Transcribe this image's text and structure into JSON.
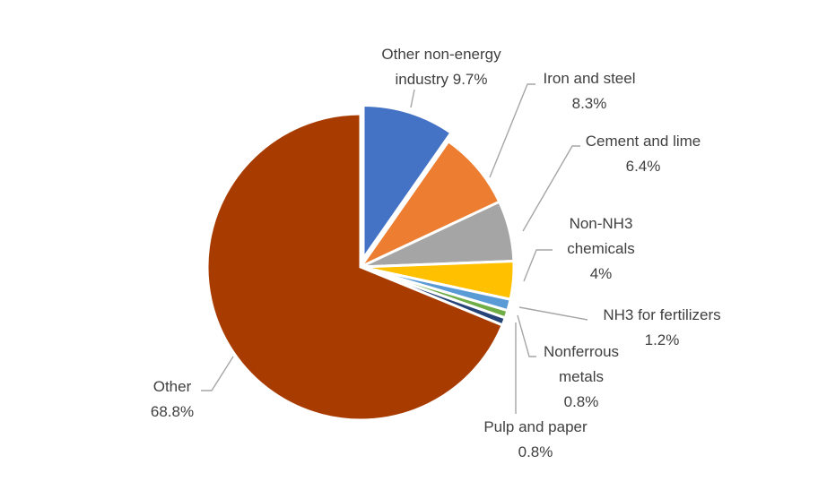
{
  "chart_data": {
    "type": "pie",
    "title": "",
    "slices": [
      {
        "label": [
          "Other non-energy",
          "industry 9.7%"
        ],
        "name": "Other non-energy industry",
        "value": 9.7,
        "color": "#4472C4",
        "exploded": true
      },
      {
        "label": [
          "Iron and steel",
          "8.3%"
        ],
        "name": "Iron and steel",
        "value": 8.3,
        "color": "#ED7D31",
        "exploded": false
      },
      {
        "label": [
          "Cement and lime",
          "6.4%"
        ],
        "name": "Cement and lime",
        "value": 6.4,
        "color": "#A5A5A5",
        "exploded": false
      },
      {
        "label": [
          "Non-NH3",
          "chemicals",
          "4%"
        ],
        "name": "Non-NH3 chemicals",
        "value": 4.0,
        "color": "#FFC000",
        "exploded": false
      },
      {
        "label": [
          "NH3 for fertilizers",
          "1.2%"
        ],
        "name": "NH3 for fertilizers",
        "value": 1.2,
        "color": "#5B9BD5",
        "exploded": false
      },
      {
        "label": [
          "Nonferrous",
          "metals",
          "0.8%"
        ],
        "name": "Nonferrous metals",
        "value": 0.8,
        "color": "#70AD47",
        "exploded": false
      },
      {
        "label": [
          "Pulp and paper",
          "0.8%"
        ],
        "name": "Pulp and paper",
        "value": 0.8,
        "color": "#264478",
        "exploded": false
      },
      {
        "label": [
          "Other",
          "68.8%"
        ],
        "name": "Other",
        "value": 68.8,
        "color": "#A83C00",
        "exploded": false
      }
    ],
    "legend": "none",
    "start_angle": "12 o'clock, clockwise"
  }
}
